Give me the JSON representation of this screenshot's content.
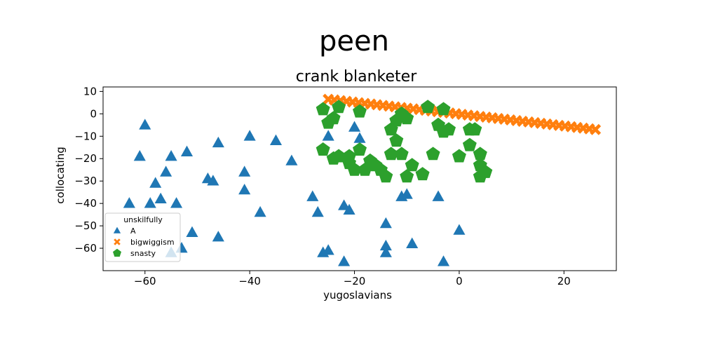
{
  "chart_data": {
    "type": "scatter",
    "suptitle": "peen",
    "title": "crank blanketer",
    "xlabel": "yugoslavians",
    "ylabel": "collocating",
    "xlim": [
      -68,
      30
    ],
    "ylim": [
      -70,
      12
    ],
    "xticks": [
      -60,
      -40,
      -20,
      0,
      20
    ],
    "yticks": [
      10,
      0,
      -10,
      -20,
      -30,
      -40,
      -50,
      -60
    ],
    "grid": false,
    "legend": {
      "title": "unskilfully",
      "placement": "lower-left"
    },
    "series": [
      {
        "name": "A",
        "marker": "triangle",
        "color": "#1f77b4",
        "points": [
          [
            -60,
            -5
          ],
          [
            -61,
            -19
          ],
          [
            -58,
            -31
          ],
          [
            -57,
            -38
          ],
          [
            -56,
            -26
          ],
          [
            -55,
            -19
          ],
          [
            -52,
            -17
          ],
          [
            -63,
            -40
          ],
          [
            -59,
            -40
          ],
          [
            -54,
            -40
          ],
          [
            -51,
            -53
          ],
          [
            -55,
            -62
          ],
          [
            -53,
            -60
          ],
          [
            -48,
            -29
          ],
          [
            -47,
            -30
          ],
          [
            -46,
            -13
          ],
          [
            -46,
            -55
          ],
          [
            -41,
            -26
          ],
          [
            -41,
            -34
          ],
          [
            -40,
            -10
          ],
          [
            -38,
            -44
          ],
          [
            -35,
            -12
          ],
          [
            -32,
            -21
          ],
          [
            -28,
            -37
          ],
          [
            -27,
            -44
          ],
          [
            -25,
            -10
          ],
          [
            -26,
            -62
          ],
          [
            -25,
            -61
          ],
          [
            -22,
            -41
          ],
          [
            -21,
            -43
          ],
          [
            -22,
            -66
          ],
          [
            -20,
            -6
          ],
          [
            -19,
            -11
          ],
          [
            -14,
            -49
          ],
          [
            -14,
            -59
          ],
          [
            -14,
            -62
          ],
          [
            -11,
            -37
          ],
          [
            -10,
            -36
          ],
          [
            -9,
            -58
          ],
          [
            -4,
            -37
          ],
          [
            -3,
            -66
          ],
          [
            0,
            -52
          ]
        ]
      },
      {
        "name": "bigwiggism",
        "marker": "x",
        "color": "#ff7f0e",
        "line_from": [
          -25,
          6.5
        ],
        "line_to": [
          26,
          -7
        ],
        "count": 45
      },
      {
        "name": "snasty",
        "marker": "pentagon",
        "color": "#2ca02c",
        "points": [
          [
            -26,
            2
          ],
          [
            -25,
            -4
          ],
          [
            -24,
            -2
          ],
          [
            -23,
            3
          ],
          [
            -19,
            1
          ],
          [
            -26,
            -16
          ],
          [
            -24,
            -20
          ],
          [
            -23,
            -19
          ],
          [
            -21,
            -22
          ],
          [
            -20,
            -25
          ],
          [
            -19,
            -16
          ],
          [
            -21,
            -19
          ],
          [
            -18,
            -25
          ],
          [
            -17,
            -21
          ],
          [
            -16,
            -23
          ],
          [
            -15,
            -25
          ],
          [
            -14,
            -28
          ],
          [
            -13,
            -7
          ],
          [
            -12,
            -3
          ],
          [
            -12,
            -12
          ],
          [
            -11,
            -18
          ],
          [
            -13,
            -18
          ],
          [
            -11,
            0
          ],
          [
            -10,
            -2
          ],
          [
            -10,
            -28
          ],
          [
            -9,
            -23
          ],
          [
            -7,
            -27
          ],
          [
            -6,
            3
          ],
          [
            -5,
            -18
          ],
          [
            -4,
            -5
          ],
          [
            -3,
            -8
          ],
          [
            -3,
            2
          ],
          [
            -2,
            -7
          ],
          [
            0,
            -19
          ],
          [
            2,
            -7
          ],
          [
            3,
            -7
          ],
          [
            2,
            -14
          ],
          [
            4,
            -18
          ],
          [
            4,
            -23
          ],
          [
            5,
            -26
          ],
          [
            4,
            -28
          ]
        ]
      }
    ]
  }
}
